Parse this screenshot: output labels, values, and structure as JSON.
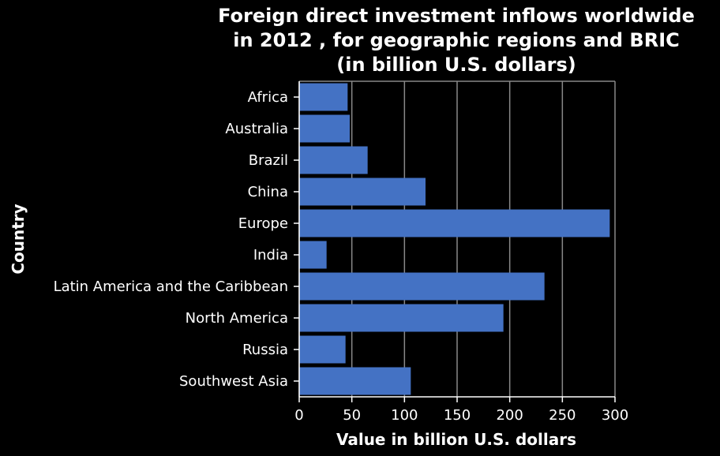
{
  "chart_data": {
    "type": "bar",
    "orientation": "horizontal",
    "title_lines": [
      "Foreign direct investment inflows worldwide",
      "in 2012 , for geographic regions and BRIC",
      "(in billion U.S. dollars)"
    ],
    "xlabel": "Value in billion U.S. dollars",
    "ylabel": "Country",
    "categories": [
      "Africa",
      "Australia",
      "Brazil",
      "China",
      "Europe",
      "India",
      "Latin America and the Caribbean",
      "North America",
      "Russia",
      "Southwest Asia"
    ],
    "values": [
      46,
      48,
      65,
      120,
      295,
      26,
      233,
      194,
      44,
      106
    ],
    "xlim": [
      0,
      300
    ],
    "xticks": [
      0,
      50,
      100,
      150,
      200,
      250,
      300
    ],
    "grid": true,
    "bar_color": "#4472c4",
    "background": "#000000"
  }
}
